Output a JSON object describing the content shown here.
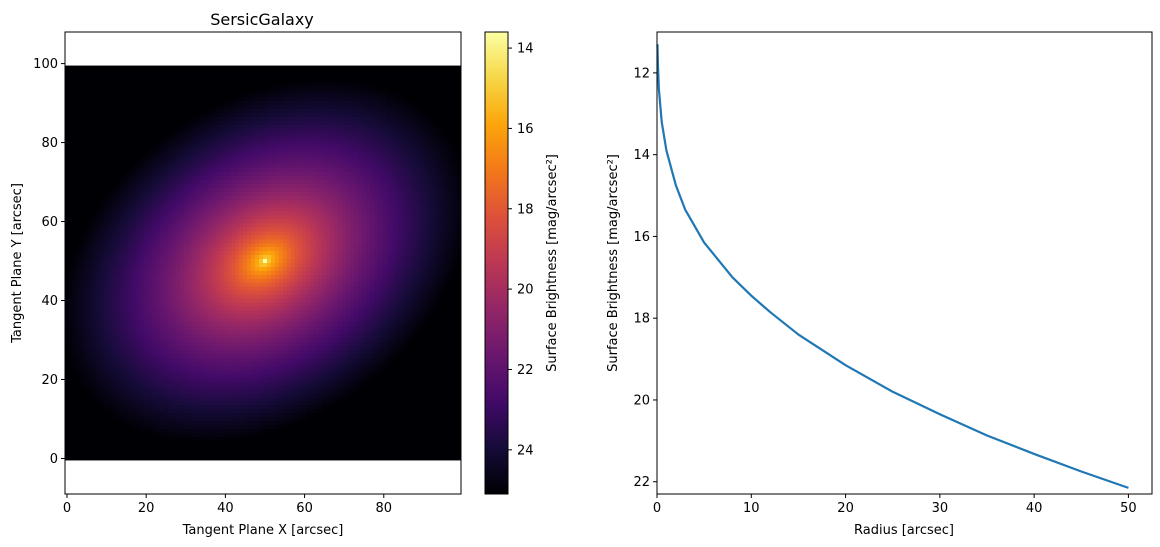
{
  "chart_data": [
    {
      "type": "heatmap",
      "title": "SersicGalaxy",
      "xlabel": "Tangent Plane X [arcsec]",
      "ylabel": "Tangent Plane Y [arcsec]",
      "xlim": [
        -0.5,
        99.5
      ],
      "ylim": [
        -9,
        108
      ],
      "image_extent": [
        -0.5,
        99.5,
        -0.5,
        99.5
      ],
      "grid_size": [
        100,
        100
      ],
      "x_ticks": [
        0,
        20,
        40,
        60,
        80
      ],
      "y_ticks": [
        0,
        20,
        40,
        60,
        80,
        100
      ],
      "center": [
        50,
        50
      ],
      "peak_value": 13.5,
      "corner_values": {
        "bottom-left": 24.9,
        "top-right": 24.6,
        "top-left": 22.4,
        "bottom-right": 22.7
      },
      "colormap": "inferno",
      "colorbar": {
        "label": "Surface Brightness [mag/arcsec²]",
        "range": [
          13.6,
          25.1
        ],
        "reversed": true,
        "ticks": [
          14,
          16,
          18,
          20,
          22,
          24
        ]
      },
      "grid": false
    },
    {
      "type": "line",
      "title": "",
      "xlabel": "Radius [arcsec]",
      "ylabel": "Surface Brightness [mag/arcsec²]",
      "xlim": [
        0,
        52.5
      ],
      "ylim": [
        22.3,
        11.0
      ],
      "y_inverted": true,
      "x_ticks": [
        0,
        10,
        20,
        30,
        40,
        50
      ],
      "y_ticks": [
        12,
        14,
        16,
        18,
        20,
        22
      ],
      "series": [
        {
          "color": "#1f77b4",
          "x": [
            0.05,
            0.1,
            0.2,
            0.5,
            1,
            2,
            3,
            5,
            8,
            10,
            12,
            15,
            20,
            25,
            30,
            35,
            40,
            45,
            50
          ],
          "y": [
            11.3,
            11.8,
            12.4,
            13.2,
            13.9,
            14.75,
            15.35,
            16.15,
            17.0,
            17.45,
            17.85,
            18.4,
            19.15,
            19.8,
            20.35,
            20.87,
            21.32,
            21.75,
            22.15
          ]
        }
      ],
      "grid": false
    }
  ]
}
